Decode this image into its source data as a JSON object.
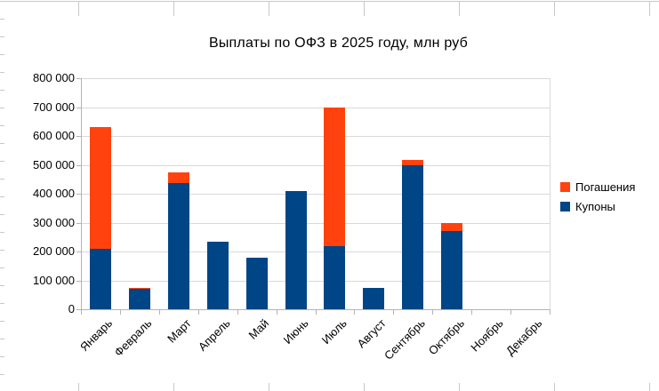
{
  "chart_data": {
    "type": "bar",
    "stacked": true,
    "title": "Выплаты по ОФЗ в 2025 году, млн руб",
    "unit": "млн руб",
    "categories": [
      "Январь",
      "Февраль",
      "Март",
      "Апрель",
      "Май",
      "Июнь",
      "Июль",
      "Август",
      "Сентябрь",
      "Октябрь",
      "Ноябрь",
      "Декабрь"
    ],
    "series": [
      {
        "name": "Погашения",
        "key": "redemptions",
        "color": "#FF420E",
        "values": [
          420000,
          4000,
          36000,
          0,
          0,
          0,
          480000,
          0,
          20000,
          28000,
          0,
          0
        ]
      },
      {
        "name": "Купоны",
        "key": "coupons",
        "color": "#004586",
        "values": [
          210000,
          70000,
          437000,
          235000,
          178000,
          409000,
          220000,
          75000,
          498000,
          270000,
          0,
          0
        ]
      }
    ],
    "stack_bottom_series": "Купоны",
    "ylim": [
      0,
      800000
    ],
    "ytick_step": 100000,
    "ytick_labels": [
      "0",
      "100 000",
      "200 000",
      "300 000",
      "400 000",
      "500 000",
      "600 000",
      "700 000",
      "800 000"
    ],
    "grid": true,
    "legend_position": "right",
    "colors": {
      "grid": "#d9d9d9",
      "axis": "#b3b3b3",
      "sheet_line": "#c8c8c8",
      "text": "#000000",
      "plot_bg": "#ffffff"
    }
  }
}
